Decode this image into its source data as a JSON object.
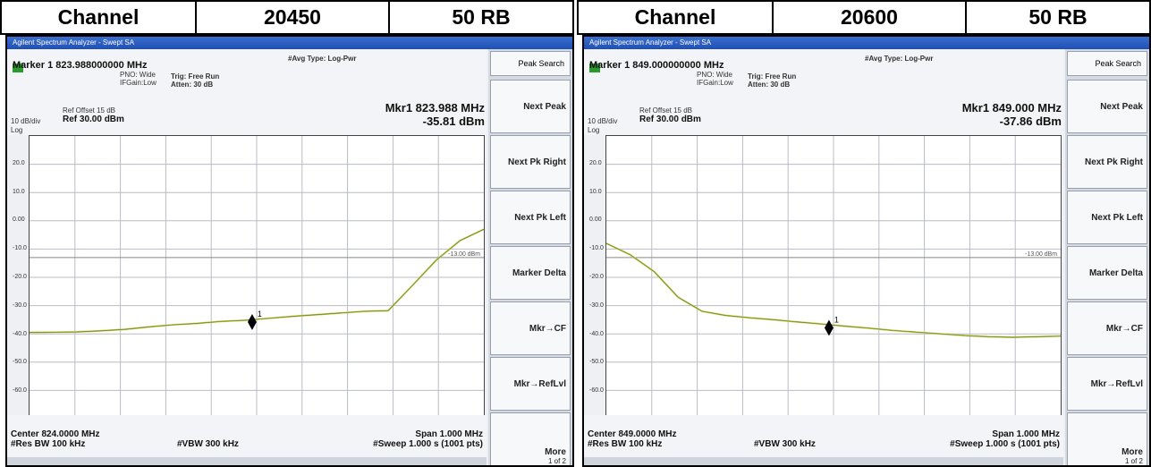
{
  "headers": [
    {
      "channel_label": "Channel",
      "channel_value": "20450",
      "rb": "50 RB"
    },
    {
      "channel_label": "Channel",
      "channel_value": "20600",
      "rb": "50 RB"
    }
  ],
  "panels": [
    {
      "title": "Agilent Spectrum Analyzer - Swept SA",
      "marker_line": "Marker 1 823.988000000 MHz",
      "avg_type": "#Avg Type: Log-Pwr",
      "trig": "Trig: Free Run",
      "atten": "Atten: 30 dB",
      "pno": "PNO: Wide",
      "ifgain": "IFGain:Low",
      "ref_offset": "Ref Offset 15 dB",
      "ref_level": "Ref 30.00 dBm",
      "scale": "10 dB/div",
      "log": "Log",
      "mkr_freq": "Mkr1 823.988 MHz",
      "mkr_level": "-35.81 dBm",
      "center": "Center 824.0000 MHz",
      "res_bw": "#Res BW 100 kHz",
      "vbw": "#VBW 300 kHz",
      "span": "Span 1.000 MHz",
      "sweep": "#Sweep  1.000 s (1001 pts)",
      "softkeys": [
        "Next Peak",
        "Next Pk Right",
        "Next Pk Left",
        "Marker Delta",
        "Mkr→CF",
        "Mkr→RefLvl"
      ],
      "search": "Peak Search",
      "more": "More",
      "more_page": "1 of 2",
      "y_ticks": [
        "20.0",
        "10.0",
        "0.00",
        "-10.0",
        "-20.0",
        "-30.0",
        "-40.0",
        "-50.0",
        "-60.0"
      ],
      "limit_label": "-13.00 dBm",
      "marker_num": "1",
      "trace_y": [
        -39.5,
        -39.4,
        -39.3,
        -38.9,
        -38.4,
        -37.5,
        -36.8,
        -36.3,
        -35.6,
        -35.2,
        -34.5,
        -33.8,
        -33.2,
        -32.6,
        -32.0,
        -31.8,
        -23.0,
        -14.0,
        -7.0,
        -3.0
      ],
      "marker_x": 0.49,
      "marker_y": -35.81
    },
    {
      "title": "Agilent Spectrum Analyzer - Swept SA",
      "marker_line": "Marker 1 849.000000000 MHz",
      "avg_type": "#Avg Type: Log-Pwr",
      "trig": "Trig: Free Run",
      "atten": "Atten: 30 dB",
      "pno": "PNO: Wide",
      "ifgain": "IFGain:Low",
      "ref_offset": "Ref Offset 15 dB",
      "ref_level": "Ref 30.00 dBm",
      "scale": "10 dB/div",
      "log": "Log",
      "mkr_freq": "Mkr1 849.000 MHz",
      "mkr_level": "-37.86 dBm",
      "center": "Center 849.0000 MHz",
      "res_bw": "#Res BW 100 kHz",
      "vbw": "#VBW 300 kHz",
      "span": "Span 1.000 MHz",
      "sweep": "#Sweep  1.000 s (1001 pts)",
      "softkeys": [
        "Next Peak",
        "Next Pk Right",
        "Next Pk Left",
        "Marker Delta",
        "Mkr→CF",
        "Mkr→RefLvl"
      ],
      "search": "Peak Search",
      "more": "More",
      "more_page": "1 of 2",
      "y_ticks": [
        "20.0",
        "10.0",
        "0.00",
        "-10.0",
        "-20.0",
        "-30.0",
        "-40.0",
        "-50.0",
        "-60.0"
      ],
      "limit_label": "-13.00 dBm",
      "marker_num": "1",
      "trace_y": [
        -8.0,
        -12.0,
        -18.0,
        -27.0,
        -32.0,
        -33.5,
        -34.3,
        -35.0,
        -35.8,
        -36.5,
        -37.3,
        -38.0,
        -38.8,
        -39.4,
        -40.0,
        -40.6,
        -41.0,
        -41.2,
        -41.0,
        -40.8
      ],
      "marker_x": 0.49,
      "marker_y": -37.86
    }
  ]
}
